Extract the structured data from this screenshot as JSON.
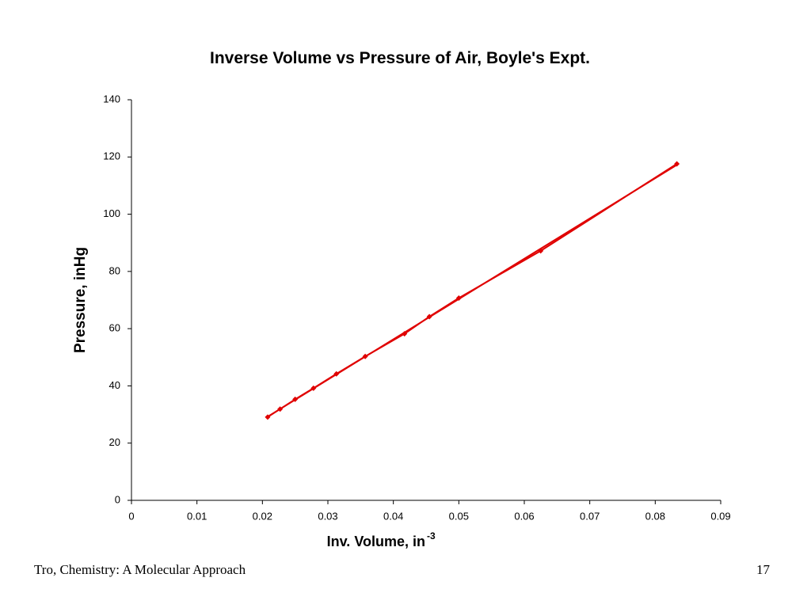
{
  "chart_data": {
    "type": "scatter",
    "title": "Inverse Volume vs Pressure of Air, Boyle's Expt.",
    "xlabel": "Inv. Volume, in",
    "xlabel_sup": "-3",
    "ylabel": "Pressure, inHg",
    "series": [
      {
        "name": "Pressure",
        "color": "#e00000",
        "x": [
          0.0208,
          0.0227,
          0.025,
          0.0278,
          0.0313,
          0.0357,
          0.0417,
          0.0455,
          0.05,
          0.0625,
          0.0833
        ],
        "values": [
          29.1,
          31.9,
          35.3,
          39.2,
          44.2,
          50.3,
          58.2,
          64.2,
          70.7,
          87.2,
          117.6
        ]
      }
    ],
    "trendline": true,
    "xlim": [
      0,
      0.09
    ],
    "xticks": [
      0,
      0.01,
      0.02,
      0.03,
      0.04,
      0.05,
      0.06,
      0.07,
      0.08,
      0.09
    ],
    "ylim": [
      0,
      140
    ],
    "yticks": [
      0,
      20,
      40,
      60,
      80,
      100,
      120,
      140
    ],
    "grid": false
  },
  "footer": {
    "source": "Tro, Chemistry: A Molecular Approach",
    "page": "17"
  }
}
